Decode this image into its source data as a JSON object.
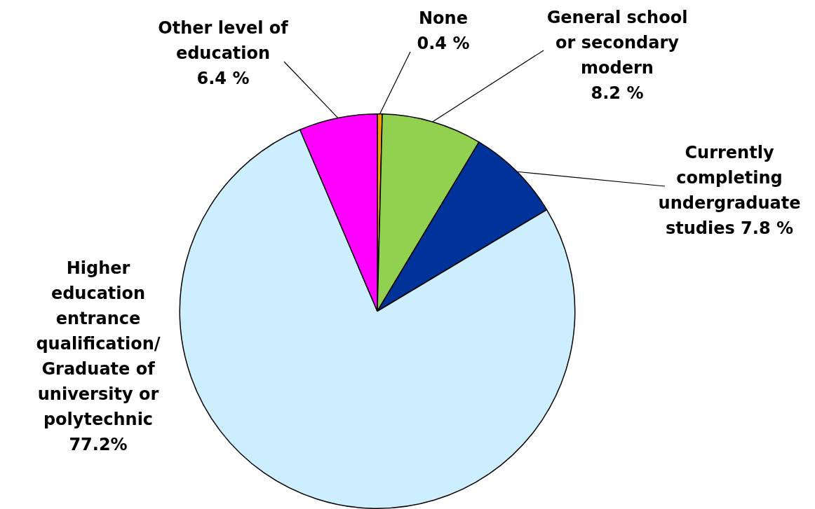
{
  "chart_data": {
    "type": "pie",
    "categories": [
      "None",
      "General school or secondary modern",
      "Currently completing undergraduate studies",
      "Higher education entrance qualification/ Graduate of university or polytechnic",
      "Other level of education"
    ],
    "values": [
      0.4,
      8.2,
      7.8,
      77.2,
      6.4
    ],
    "colors": [
      "#ff9900",
      "#92d050",
      "#003399",
      "#cceeff",
      "#ff00ff"
    ],
    "value_labels": [
      "0.4 %",
      "8.2 %",
      "7.8 %",
      "77.2%",
      "6.4 %"
    ],
    "legend": false
  }
}
